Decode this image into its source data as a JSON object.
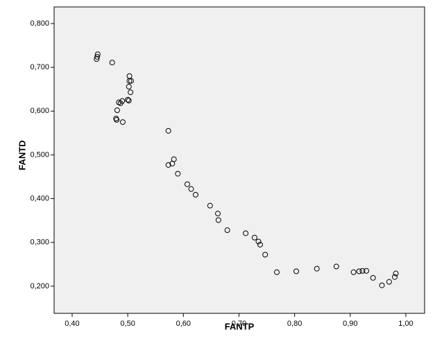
{
  "chart_data": {
    "type": "scatter",
    "x_label": "FANTP",
    "y_label": "FANTD",
    "color": "#000000",
    "x": [
      0.446,
      0.445,
      0.444,
      0.472,
      0.503,
      0.503,
      0.506,
      0.502,
      0.505,
      0.5,
      0.502,
      0.49,
      0.484,
      0.487,
      0.481,
      0.479,
      0.48,
      0.491,
      0.573,
      0.583,
      0.58,
      0.573,
      0.59,
      0.607,
      0.614,
      0.622,
      0.648,
      0.662,
      0.663,
      0.679,
      0.712,
      0.728,
      0.735,
      0.738,
      0.747,
      0.768,
      0.803,
      0.84,
      0.875,
      0.906,
      0.916,
      0.922,
      0.929,
      0.941,
      0.957,
      0.97,
      0.98,
      0.982
    ],
    "y": [
      0.73,
      0.724,
      0.719,
      0.711,
      0.68,
      0.669,
      0.669,
      0.656,
      0.643,
      0.626,
      0.624,
      0.623,
      0.62,
      0.618,
      0.602,
      0.583,
      0.58,
      0.575,
      0.555,
      0.49,
      0.48,
      0.477,
      0.457,
      0.433,
      0.422,
      0.409,
      0.384,
      0.366,
      0.351,
      0.328,
      0.321,
      0.311,
      0.302,
      0.295,
      0.272,
      0.232,
      0.234,
      0.24,
      0.245,
      0.232,
      0.234,
      0.235,
      0.235,
      0.219,
      0.202,
      0.21,
      0.221,
      0.229
    ],
    "xlim": [
      0.3676,
      1.0337
    ],
    "ylim": [
      0.138,
      0.838
    ],
    "xticks": [
      {
        "value": 0.4,
        "label": "0,40"
      },
      {
        "value": 0.5,
        "label": "0,50"
      },
      {
        "value": 0.6,
        "label": "0,60"
      },
      {
        "value": 0.7,
        "label": "0,70"
      },
      {
        "value": 0.8,
        "label": "0,80"
      },
      {
        "value": 0.9,
        "label": "0,90"
      },
      {
        "value": 1.0,
        "label": "1,00"
      }
    ],
    "yticks": [
      {
        "value": 0.2,
        "label": "0,200"
      },
      {
        "value": 0.3,
        "label": "0,300"
      },
      {
        "value": 0.4,
        "label": "0,400"
      },
      {
        "value": 0.5,
        "label": "0,500"
      },
      {
        "value": 0.6,
        "label": "0,600"
      },
      {
        "value": 0.7,
        "label": "0,700"
      },
      {
        "value": 0.8,
        "label": "0,800"
      }
    ]
  }
}
